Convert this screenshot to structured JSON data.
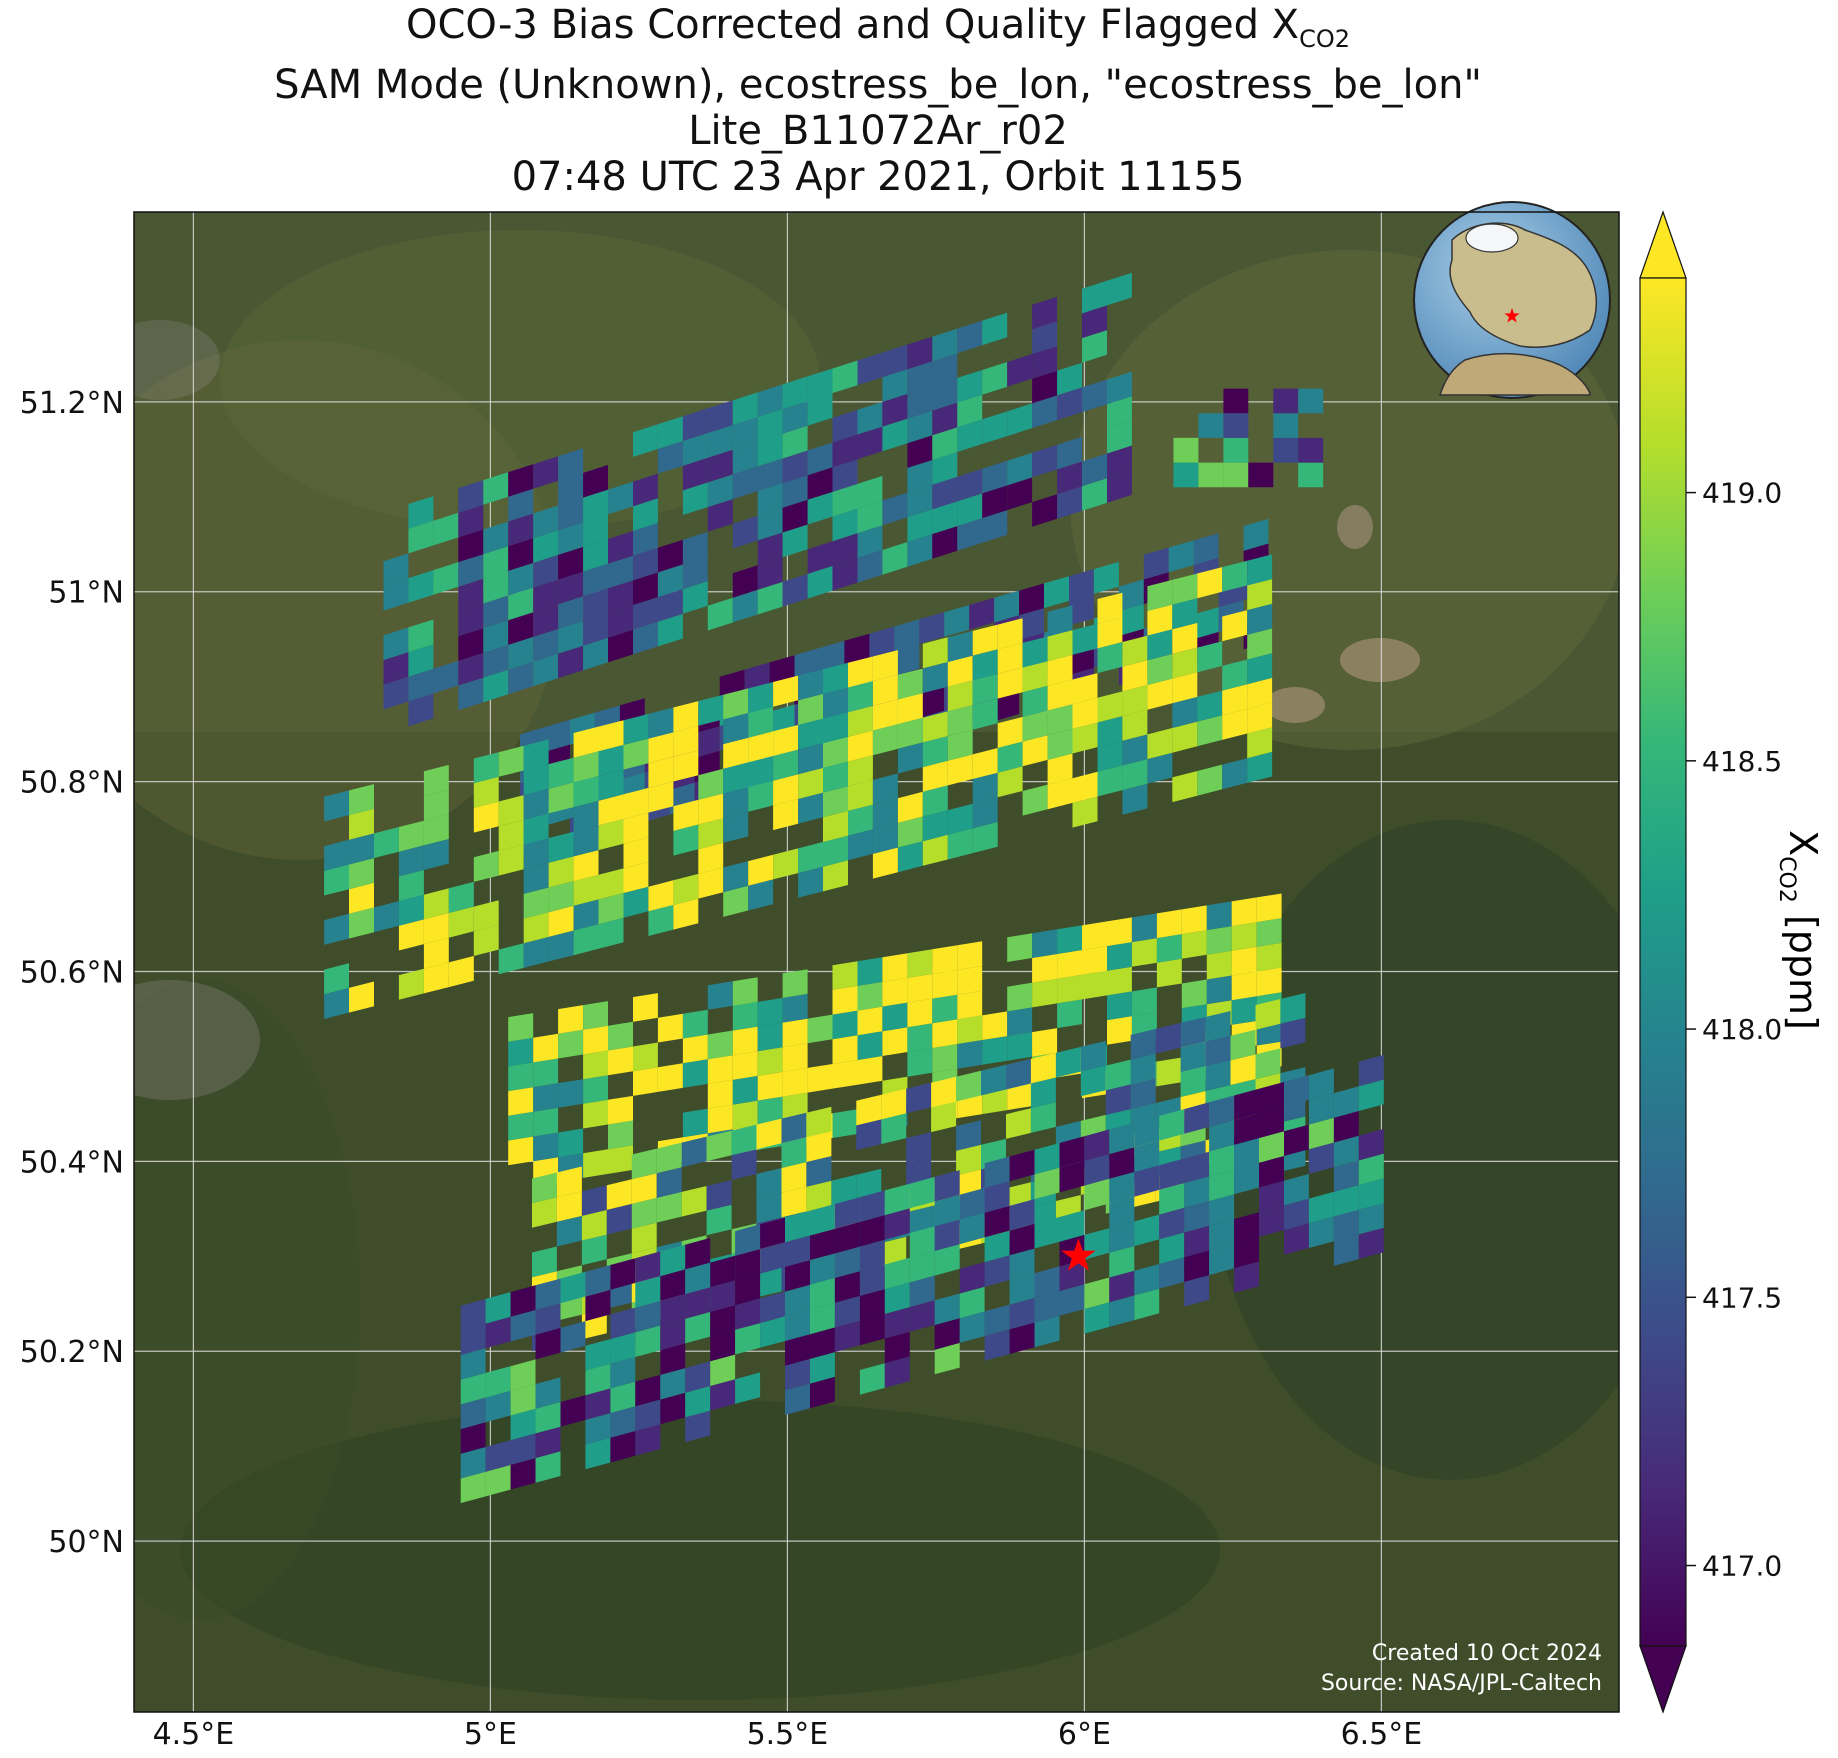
{
  "title": {
    "line1_prefix": "OCO-3 Bias Corrected and Quality Flagged X",
    "line1_sub": "CO2",
    "line2": "SAM Mode (Unknown), ecostress_be_lon, \"ecostress_be_lon\"",
    "line3": "Lite_B11072Ar_r02",
    "line4": "07:48 UTC 23 Apr 2021, Orbit 11155"
  },
  "map": {
    "lon_range": [
      4.4,
      6.9
    ],
    "lat_range": [
      49.82,
      51.4
    ],
    "lon_ticks": [
      {
        "value": 4.5,
        "label": "4.5°E"
      },
      {
        "value": 5.0,
        "label": "5°E"
      },
      {
        "value": 5.5,
        "label": "5.5°E"
      },
      {
        "value": 6.0,
        "label": "6°E"
      },
      {
        "value": 6.5,
        "label": "6.5°E"
      }
    ],
    "lat_ticks": [
      {
        "value": 50.0,
        "label": "50°N"
      },
      {
        "value": 50.2,
        "label": "50.2°N"
      },
      {
        "value": 50.4,
        "label": "50.4°N"
      },
      {
        "value": 50.6,
        "label": "50.6°N"
      },
      {
        "value": 50.8,
        "label": "50.8°N"
      },
      {
        "value": 51.0,
        "label": "51°N"
      },
      {
        "value": 51.2,
        "label": "51.2°N"
      }
    ],
    "grid": true,
    "basemap": "satellite imagery",
    "target_marker": {
      "lon": 5.99,
      "lat": 50.3,
      "symbol": "star",
      "color": "#ff0000"
    },
    "inset_globe": {
      "position": "top-right",
      "marker_color": "#ff0000"
    },
    "credits": {
      "created": "Created 10 Oct 2024",
      "source": "Source: NASA/JPL-Caltech"
    }
  },
  "colorbar": {
    "label_prefix": "X",
    "label_sub": "CO2",
    "label_suffix": " [ppm]",
    "colormap": "viridis",
    "range": [
      416.85,
      419.4
    ],
    "extend": "both",
    "ticks": [
      {
        "value": 417.0,
        "label": "417.0"
      },
      {
        "value": 417.5,
        "label": "417.5"
      },
      {
        "value": 418.0,
        "label": "418.0"
      },
      {
        "value": 418.5,
        "label": "418.5"
      },
      {
        "value": 419.0,
        "label": "419.0"
      }
    ],
    "colors": [
      "#440154",
      "#482878",
      "#3e4989",
      "#31688e",
      "#26828e",
      "#1f9e89",
      "#35b779",
      "#6ece58",
      "#b5de2b",
      "#fde725"
    ]
  },
  "chart_data": {
    "type": "heatmap",
    "title": "OCO-3 Bias Corrected and Quality Flagged XCO2",
    "xlabel": "",
    "ylabel": "",
    "colorbar_label": "XCO2 [ppm]",
    "value_range": [
      416.85,
      419.4
    ],
    "swaths": [
      {
        "name": "band-1",
        "lon_start": 4.82,
        "lon_end": 6.05,
        "lat_top": 51.06,
        "lat_bottom": 50.85,
        "tilt": 0.2,
        "mean": 417.7,
        "spread": 0.55
      },
      {
        "name": "band-2",
        "lon_start": 5.05,
        "lon_end": 6.28,
        "lat_top": 50.84,
        "lat_bottom": 50.72,
        "tilt": 0.18,
        "mean": 417.4,
        "spread": 0.6
      },
      {
        "name": "band-3",
        "lon_start": 4.72,
        "lon_end": 6.3,
        "lat_top": 50.77,
        "lat_bottom": 50.55,
        "tilt": 0.16,
        "mean": 418.8,
        "spread": 0.6
      },
      {
        "name": "band-4",
        "lon_start": 5.03,
        "lon_end": 6.32,
        "lat_top": 50.55,
        "lat_bottom": 50.37,
        "tilt": 0.1,
        "mean": 418.9,
        "spread": 0.65
      },
      {
        "name": "band-5",
        "lon_start": 5.07,
        "lon_end": 6.37,
        "lat_top": 50.37,
        "lat_bottom": 50.2,
        "tilt": 0.15,
        "mean": 418.5,
        "spread": 0.75
      },
      {
        "name": "band-6",
        "lon_start": 4.95,
        "lon_end": 6.5,
        "lat_top": 50.24,
        "lat_bottom": 50.04,
        "tilt": 0.17,
        "mean": 417.7,
        "spread": 0.7
      },
      {
        "name": "band-7",
        "lon_start": 6.15,
        "lon_end": 6.4,
        "lat_top": 51.19,
        "lat_bottom": 51.11,
        "tilt": 0.0,
        "mean": 417.6,
        "spread": 0.8
      }
    ]
  }
}
